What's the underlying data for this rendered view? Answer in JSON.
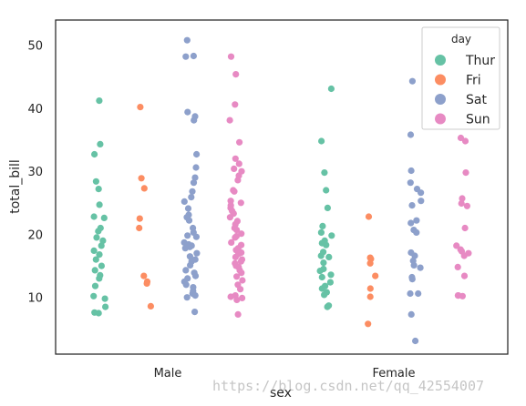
{
  "watermark": "https://blog.csdn.net/qq_42554007",
  "chart_data": {
    "type": "scatter",
    "subtype": "stripplot",
    "title": "",
    "xlabel": "sex",
    "ylabel": "total_bill",
    "categories": [
      "Male",
      "Female"
    ],
    "ylim": [
      1,
      54
    ],
    "yticks": [
      10,
      20,
      30,
      40,
      50
    ],
    "grid": false,
    "legend": {
      "title": "day",
      "placement": "top-right"
    },
    "series": [
      {
        "name": "Thur",
        "color": "#66c2a5",
        "points": {
          "Male": [
            41.2,
            34.3,
            32.7,
            28.4,
            27.2,
            24.7,
            22.8,
            22.6,
            21.0,
            20.5,
            19.5,
            19.0,
            18.2,
            17.4,
            16.8,
            16.0,
            15.0,
            14.3,
            13.5,
            13.0,
            11.8,
            10.2,
            9.8,
            8.5,
            7.6,
            7.5
          ],
          "Female": [
            43.1,
            34.8,
            29.8,
            27.0,
            24.2,
            21.3,
            20.3,
            19.8,
            19.0,
            18.6,
            18.3,
            17.2,
            16.6,
            16.4,
            15.5,
            14.5,
            14.2,
            13.6,
            13.2,
            12.4,
            11.8,
            11.4,
            10.8,
            10.4,
            8.7,
            8.5
          ]
        }
      },
      {
        "name": "Fri",
        "color": "#fc8d62",
        "points": {
          "Male": [
            40.2,
            28.9,
            27.3,
            22.5,
            21.0,
            13.4,
            12.5,
            12.2,
            8.6
          ],
          "Female": [
            22.8,
            16.3,
            16.1,
            15.4,
            13.4,
            11.4,
            10.1,
            5.8
          ]
        }
      },
      {
        "name": "Sat",
        "color": "#8da0cb",
        "points": {
          "Male": [
            50.8,
            48.3,
            48.2,
            39.4,
            38.1,
            38.7,
            32.7,
            30.6,
            29.0,
            28.2,
            26.8,
            25.9,
            25.2,
            24.1,
            23.1,
            22.7,
            22.2,
            21.0,
            20.3,
            19.8,
            19.6,
            18.7,
            18.4,
            18.2,
            18.0,
            17.8,
            17.0,
            16.5,
            16.0,
            15.7,
            15.1,
            14.3,
            13.9,
            13.4,
            13.0,
            12.5,
            12.0,
            11.6,
            11.0,
            10.6,
            10.3,
            10.0,
            7.7
          ],
          "Female": [
            44.3,
            35.8,
            30.1,
            28.2,
            27.2,
            26.6,
            25.3,
            24.6,
            22.2,
            21.8,
            20.7,
            20.3,
            17.1,
            16.6,
            15.8,
            15.1,
            14.7,
            13.2,
            12.9,
            10.6,
            10.6,
            7.3,
            3.1
          ]
        }
      },
      {
        "name": "Sun",
        "color": "#e78ac3",
        "points": {
          "Male": [
            48.2,
            45.4,
            40.6,
            38.1,
            34.6,
            32.0,
            31.2,
            30.4,
            30.0,
            29.3,
            28.6,
            27.0,
            26.8,
            25.3,
            25.0,
            24.6,
            24.2,
            23.7,
            23.3,
            22.7,
            22.1,
            21.6,
            21.0,
            20.7,
            20.1,
            19.7,
            19.5,
            18.7,
            18.3,
            17.8,
            17.5,
            17.1,
            16.9,
            16.4,
            16.0,
            15.7,
            15.4,
            15.0,
            14.8,
            14.3,
            13.9,
            13.3,
            12.7,
            12.0,
            11.3,
            10.3,
            10.1,
            9.9,
            9.6,
            7.3
          ],
          "Female": [
            35.3,
            34.8,
            29.8,
            25.7,
            24.9,
            24.5,
            21.0,
            18.2,
            17.6,
            17.3,
            17.0,
            16.6,
            14.8,
            13.4,
            10.3,
            10.3,
            10.2
          ]
        }
      }
    ]
  }
}
